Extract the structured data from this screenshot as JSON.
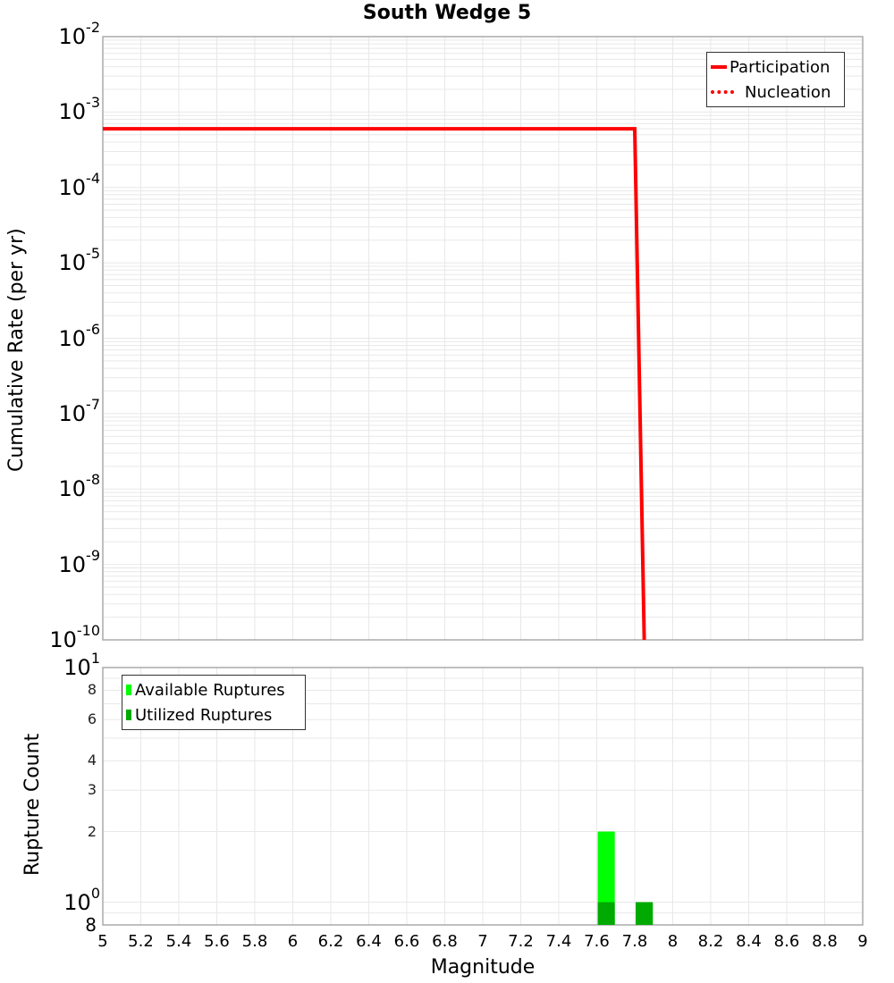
{
  "title": "South Wedge 5",
  "colors": {
    "participation": "#ff0000",
    "nucleation": "#ff0000",
    "available": "#00ff00",
    "utilized": "#00aa00",
    "grid": "#e8e8e8",
    "frame": "#aaaaaa"
  },
  "upper": {
    "ylabel": "Cumulative Rate (per yr)",
    "yticks": [
      {
        "base": "10",
        "exp": "-2"
      },
      {
        "base": "10",
        "exp": "-3"
      },
      {
        "base": "10",
        "exp": "-4"
      },
      {
        "base": "10",
        "exp": "-5"
      },
      {
        "base": "10",
        "exp": "-6"
      },
      {
        "base": "10",
        "exp": "-7"
      },
      {
        "base": "10",
        "exp": "-8"
      },
      {
        "base": "10",
        "exp": "-9"
      },
      {
        "base": "10",
        "exp": "-10"
      }
    ],
    "legend": {
      "participation": "Participation",
      "nucleation": "Nucleation"
    }
  },
  "lower": {
    "ylabel": "Rupture Count",
    "yticks_major": [
      {
        "base": "10",
        "exp": "1"
      },
      {
        "base": "10",
        "exp": "0"
      }
    ],
    "yticks_minor": [
      "8",
      "6",
      "4",
      "3",
      "2",
      "8"
    ],
    "legend": {
      "available": "Available Ruptures",
      "utilized": "Utilized Ruptures"
    }
  },
  "xlabel": "Magnitude",
  "xticks": [
    "5",
    "5.2",
    "5.4",
    "5.6",
    "5.8",
    "6",
    "6.2",
    "6.4",
    "6.6",
    "6.8",
    "7",
    "7.2",
    "7.4",
    "7.6",
    "7.8",
    "8",
    "8.2",
    "8.4",
    "8.6",
    "8.8",
    "9"
  ],
  "chart_data": [
    {
      "type": "line",
      "title": "South Wedge 5",
      "xlabel": "Magnitude",
      "ylabel": "Cumulative Rate (per yr)",
      "yscale": "log",
      "xlim": [
        5,
        9
      ],
      "ylim": [
        1e-10,
        0.01
      ],
      "grid": true,
      "legend_position": "upper right",
      "series": [
        {
          "name": "Participation",
          "style": "solid",
          "color": "#ff0000",
          "x": [
            5.0,
            7.8,
            7.85
          ],
          "y": [
            0.0006,
            0.0006,
            1e-10
          ]
        },
        {
          "name": "Nucleation",
          "style": "dotted",
          "color": "#ff0000",
          "x": [
            5.0,
            7.8,
            7.85
          ],
          "y": [
            0.0006,
            0.0006,
            1e-10
          ]
        }
      ]
    },
    {
      "type": "bar",
      "xlabel": "Magnitude",
      "ylabel": "Rupture Count",
      "yscale": "log",
      "xlim": [
        5,
        9
      ],
      "ylim": [
        0.8,
        10
      ],
      "grid": true,
      "legend_position": "upper left",
      "categories": [
        7.65,
        7.85
      ],
      "series": [
        {
          "name": "Available Ruptures",
          "color": "#00ff00",
          "values": [
            2,
            1
          ]
        },
        {
          "name": "Utilized Ruptures",
          "color": "#00aa00",
          "values": [
            1,
            1
          ]
        }
      ]
    }
  ]
}
